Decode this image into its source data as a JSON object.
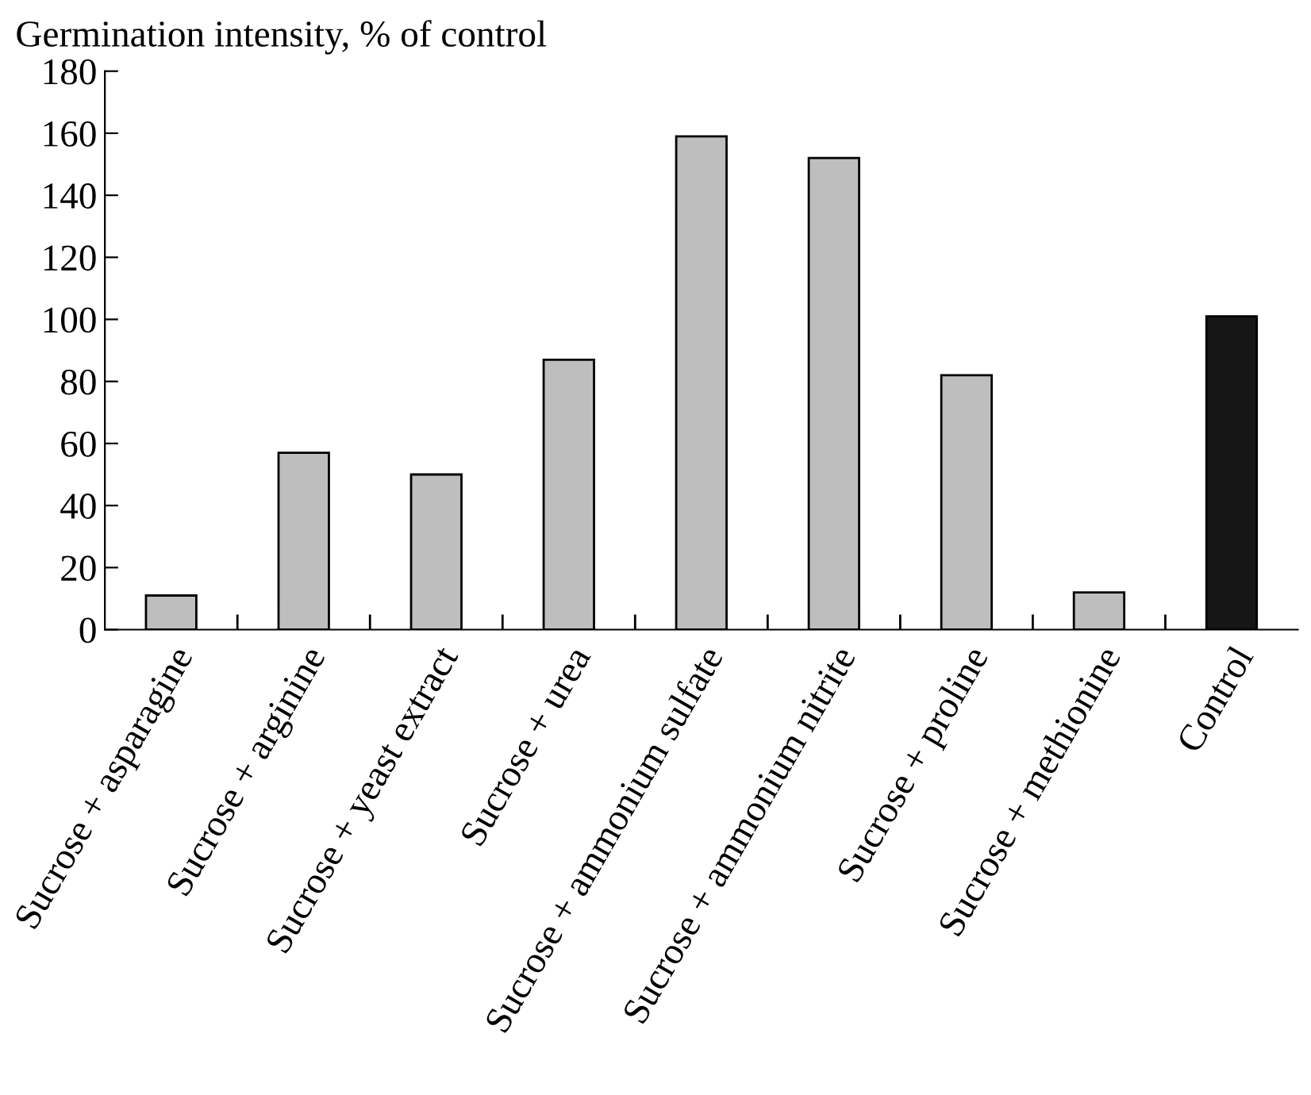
{
  "chart_data": {
    "type": "bar",
    "ylabel": "Germination intensity, % of control",
    "categories": [
      "Sucrose + asparagine",
      "Sucrose + arginine",
      "Sucrose + yeast extract",
      "Sucrose + urea",
      "Sucrose + ammonium sulfate",
      "Sucrose + ammonium nitrite",
      "Sucrose + proline",
      "Sucrose + methionine",
      "Control"
    ],
    "values": [
      11,
      57,
      50,
      87,
      159,
      152,
      82,
      12,
      101
    ],
    "colors": [
      "#bebebe",
      "#bebebe",
      "#bebebe",
      "#bebebe",
      "#bebebe",
      "#bebebe",
      "#bebebe",
      "#bebebe",
      "#161616"
    ],
    "ylim": [
      0,
      180
    ],
    "yticks": [
      0,
      20,
      40,
      60,
      80,
      100,
      120,
      140,
      160,
      180
    ],
    "grid": false,
    "legend": false
  }
}
